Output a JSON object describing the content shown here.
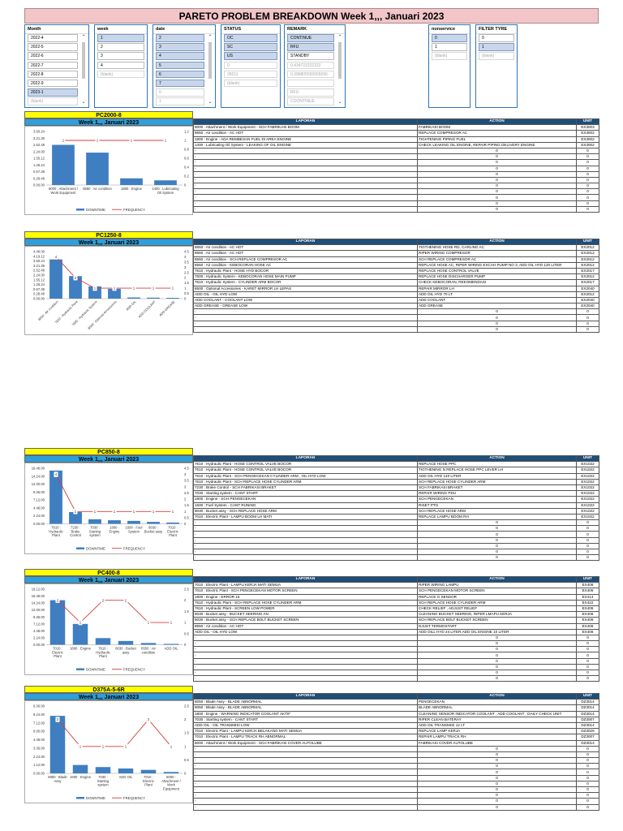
{
  "title": "PARETO PROBLEM BREAKDOWN Week 1,,, Januari 2023",
  "slicers": [
    {
      "header": "Month",
      "items": [
        {
          "label": "2022-4",
          "state": "normal"
        },
        {
          "label": "2022-5",
          "state": "normal"
        },
        {
          "label": "2022-6",
          "state": "normal"
        },
        {
          "label": "2022-7",
          "state": "normal"
        },
        {
          "label": "2022-8",
          "state": "normal"
        },
        {
          "label": "2022-9",
          "state": "normal"
        },
        {
          "label": "2023-1",
          "state": "sel"
        },
        {
          "label": "(blank)",
          "state": "dim"
        }
      ]
    },
    {
      "header": "week",
      "items": [
        {
          "label": "1",
          "state": "sel"
        },
        {
          "label": "2",
          "state": "normal"
        },
        {
          "label": "3",
          "state": "normal"
        },
        {
          "label": "4",
          "state": "normal"
        },
        {
          "label": "(blank)",
          "state": "dim"
        }
      ]
    },
    {
      "header": "date",
      "items": [
        {
          "label": "2",
          "state": "sel"
        },
        {
          "label": "3",
          "state": "sel"
        },
        {
          "label": "4",
          "state": "sel"
        },
        {
          "label": "5",
          "state": "sel"
        },
        {
          "label": "6",
          "state": "sel"
        },
        {
          "label": "7",
          "state": "sel"
        },
        {
          "label": "0",
          "state": "dim"
        },
        {
          "label": "1",
          "state": "dim"
        }
      ]
    },
    {
      "header": "STATUS",
      "items": [
        {
          "label": "OC",
          "state": "sel"
        },
        {
          "label": "SC",
          "state": "sel"
        },
        {
          "label": "US",
          "state": "sel"
        },
        {
          "label": "0",
          "state": "dim"
        },
        {
          "label": "28211",
          "state": "dim"
        },
        {
          "label": "(blank)",
          "state": "dim"
        }
      ]
    },
    {
      "header": "REMARK",
      "items": [
        {
          "label": "CONTINUE",
          "state": "sel"
        },
        {
          "label": "RFU",
          "state": "sel"
        },
        {
          "label": "STANDBY",
          "state": "normal"
        },
        {
          "label": "0.434722222222",
          "state": "dim"
        },
        {
          "label": "0.396805555555556",
          "state": "dim"
        },
        {
          "label": "",
          "state": "dim"
        },
        {
          "label": "RFU",
          "state": "dim"
        },
        {
          "label": "COONTINUE",
          "state": "dim"
        }
      ]
    },
    {
      "header": "nonservice",
      "items": [
        {
          "label": "0",
          "state": "sel"
        },
        {
          "label": "1",
          "state": "normal"
        },
        {
          "label": "(blank)",
          "state": "dim"
        }
      ]
    },
    {
      "header": "FILTER TYRE",
      "items": [
        {
          "label": "0",
          "state": "normal"
        },
        {
          "label": "1",
          "state": "sel"
        },
        {
          "label": "(blank)",
          "state": "dim"
        }
      ]
    }
  ],
  "table_headers": {
    "laporan": "LAPORAN",
    "action": "ACTION",
    "unit": "UNIT"
  },
  "blocks": [
    {
      "model": "PC2000-8",
      "week": "Week 1,,, Januari 2023",
      "chart_data": {
        "type": "bar",
        "categories": [
          "8000 : Attachment / Work Equipment",
          "8550 : Air condition",
          "1800 : Engine",
          "1400 : Lubricating Oil System"
        ],
        "series": [
          {
            "name": "DOWNTIME",
            "values": [
              3.0,
              2.42,
              0.5,
              0.35
            ]
          },
          {
            "name": "FREQUENCY",
            "values": [
              1,
              1,
              1,
              1
            ]
          }
        ],
        "y_ticks": [
          "0.00.00",
          "0.28.48",
          "0.57.36",
          "1.26.24",
          "1.55.12",
          "2.24.00",
          "2.52.48",
          "3.21.36",
          "3.50.24"
        ],
        "y2_ticks": [
          "0",
          "0.2",
          "0.4",
          "0.6",
          "0.8",
          "1",
          "1.2"
        ],
        "ylim": [
          0,
          4
        ],
        "y2lim": [
          0,
          1.2
        ],
        "data_labels": [
          "1",
          "1",
          "1",
          "1"
        ]
      },
      "rows": [
        [
          "8000 : Attachment / Work Equipment - SCH FABRIKASI BOOM",
          "FABRIKASI BOOM",
          "EX3003"
        ],
        [
          "8550 : Air condition - AC HOT",
          "REPLACE COMPRESOR AC",
          "EX3002"
        ],
        [
          "1800 : Engine - ADA REMBESAN FUEL DI AREA ENGINE",
          "TIGHTENING PIPING FUEL",
          "EX3002"
        ],
        [
          "1400 : Lubricating Oil System - LEAKING OF OIL ENGINE",
          "CHECK LEAKING OIL ENGINE, REPAIR PIPING DELIVERY ENGINE",
          "EX3002"
        ],
        [
          "-",
          "0",
          "0"
        ],
        [
          "-",
          "0",
          "0"
        ],
        [
          "-",
          "0",
          "0"
        ],
        [
          "-",
          "0",
          "0"
        ],
        [
          "-",
          "0",
          "0"
        ],
        [
          "-",
          "0",
          "0"
        ],
        [
          "-",
          "0",
          "0"
        ],
        [
          "-",
          "0",
          "0"
        ],
        [
          "-",
          "0",
          "0"
        ],
        [
          "-",
          "0",
          "0"
        ],
        [
          "-",
          "0",
          "0"
        ]
      ]
    },
    {
      "model": "PC1250-8",
      "week": "Week 1,,, Januari 2023",
      "chart_data": {
        "type": "bar",
        "categories": [
          "8550 : Air condition",
          "7610 : Hydraulic Plant",
          "7600 : Hydraulic System",
          "8500 : Optional Accessories",
          "ADD OIL",
          "ADD COOLANT",
          "ADD GREASE"
        ],
        "series": [
          {
            "name": "DOWNTIME",
            "values": [
              4.0,
              2.3,
              1.25,
              1.0,
              0.12,
              0.1,
              0.08
            ]
          },
          {
            "name": "FREQUENCY",
            "values": [
              4,
              2,
              1,
              1,
              1,
              1,
              1
            ]
          }
        ],
        "y_ticks": [
          "0.00.00",
          "0.28.48",
          "0.57.36",
          "1.26.24",
          "1.55.12",
          "2.24.00",
          "2.52.48",
          "3.21.36",
          "3.50.24",
          "4.19.12",
          "4.48.00"
        ],
        "y2_ticks": [
          "0",
          "0.5",
          "1",
          "1.5",
          "2",
          "2.5",
          "3",
          "3.5",
          "4",
          "4.5"
        ],
        "ylim": [
          0,
          4.8
        ],
        "y2lim": [
          0,
          4.5
        ],
        "data_labels": [
          "4",
          "2",
          "1",
          "1",
          "1",
          "1",
          "1"
        ]
      },
      "rows": [
        [
          "8550 : Air condition - AC HOT",
          "TIGTHENING HOSE RD, CARLING AC",
          "EX2012"
        ],
        [
          "8550 : Air condition - AC HOT",
          "RIPER WIRING COMPRESOR",
          "EX2012"
        ],
        [
          "8550 : Air condition - SCH.REPLACE COMPRESOR AC",
          "SCH REPLACE COMPRESOR AC",
          "EX2012"
        ],
        [
          "8550 : Air condition - KEBOCORAN HOSE AC",
          "REPLACE HOSE AC, RIPER WIRING EXCAH PUMP NO 3, ADD OIL HYD 120 LITER",
          "EX2012"
        ],
        [
          "7610 : Hydraulic Plant - HOSE HYD BOCOR",
          "REPLACE HOSE CONTROL VALVE",
          "EX2017"
        ],
        [
          "7600 : Hydraulic System - KEBOCORAN HOSE MAIN PUMP",
          "REPLACE HOSE DISCHARGER PUMP",
          "EX2012"
        ],
        [
          "7610 : Hydraulic System - CYLINDER ARM BOCOR",
          "CHECK KEBOCORAN, REKOMENDASI",
          "EX2017"
        ],
        [
          "8500 : Optional Accessories - KARET MIRROR LH LEPAS",
          "REPAIR MIRROR LH",
          "EX2040"
        ],
        [
          "ADD OIL - OIL HYD LOW",
          "ADD OIL HYD 70 LT",
          "EX2012"
        ],
        [
          "ADD COOLANT - COOLANT LOW",
          "ADD COOLANT",
          "EX2040"
        ],
        [
          "ADD GREASE - GREASE LOW",
          "ADD GREASE",
          "EX2040"
        ],
        [
          "-",
          "0",
          "0"
        ],
        [
          "-",
          "0",
          "0"
        ],
        [
          "-",
          "0",
          "0"
        ],
        [
          "-",
          "0",
          "0"
        ]
      ]
    },
    {
      "model": "PC850-8",
      "week": "Week 1,,, Januari 2023",
      "chart_data": {
        "type": "bar",
        "categories": [
          "7610 : Hydraulic Plant",
          "7230 : Brake Control",
          "7030 : Starting system",
          "1800 : Engine",
          "1500 : Fuel System",
          "8030 : Bucket assy",
          "7010 : Electric Plant"
        ],
        "series": [
          {
            "name": "DOWNTIME",
            "values": [
              16.3,
              3.6,
              1.4,
              1.1,
              0.9,
              0.6,
              0.4
            ]
          },
          {
            "name": "FREQUENCY",
            "values": [
              4,
              1,
              1,
              1,
              1,
              1,
              1
            ]
          }
        ],
        "y_ticks": [
          "0.00.00",
          "2.24.00",
          "4.48.00",
          "7.12.00",
          "9.36.00",
          "12.00.00",
          "14.24.00",
          "16.48.00"
        ],
        "y2_ticks": [
          "0",
          "0.5",
          "1",
          "1.5",
          "2",
          "2.5",
          "3",
          "3.5",
          "4",
          "4.5"
        ],
        "ylim": [
          0,
          17
        ],
        "y2lim": [
          0,
          4.5
        ],
        "data_labels": [
          "4",
          "1",
          "1",
          "1",
          "1",
          "1",
          "1"
        ]
      },
      "rows": [
        [
          "7610 : Hydraulic Plant - HOSE CONTROL VALVE BOCOR",
          "REPLACE HOSE PPC",
          "EX1022"
        ],
        [
          "7610 : Hydraulic Plant - HOSE CONTROL VALVE BOCOR",
          "TIGTHENING N REPLACE HOSE PPC LEVER LH",
          "EX1022"
        ],
        [
          "7610 : Hydraulic Plant - SCH PENGECEKAN CYLINDER ARM , OIL HYD LOW",
          "ADD OIL HYD 140 LITER",
          "EX1022"
        ],
        [
          "7610 : Hydraulic Plant - SCH REPLACE HOSE CYLINDER ARM",
          "SCH REPLACE HOSE CYLINDER ARM",
          "EX1022"
        ],
        [
          "7230 : Brake Control - SCH FABRIKASI BRAKET",
          "SCH FABRIKASI BRAKET",
          "EX1022"
        ],
        [
          "7030 : Starting system - CANT START",
          "REPAIR WIRING PDU",
          "EX1022"
        ],
        [
          "1800 : Engine - SCH PENGECEKAN",
          "SCH PENGECEKAN",
          "EX1022"
        ],
        [
          "1500 : Fuel System - CANT RUNING",
          "RISET PTO",
          "EX1022"
        ],
        [
          "8030 : Bucket assy - SCH REPLACE HOSE ARM",
          "SCH REPLACE HOSE ARM",
          "EX1022"
        ],
        [
          "7010 : Electric Plant - LAMPU BOOM LH MATI",
          "REPLACE LAMPU BOOM RH",
          "EX1022"
        ],
        [
          "-",
          "0",
          "0"
        ],
        [
          "-",
          "0",
          "0"
        ],
        [
          "-",
          "0",
          "0"
        ],
        [
          "-",
          "0",
          "0"
        ],
        [
          "-",
          "0",
          "0"
        ],
        [
          "-",
          "0",
          "0"
        ],
        [
          "-",
          "0",
          "0"
        ]
      ]
    },
    {
      "model": "PC400-8",
      "week": "Week 1,,, Januari 2023",
      "chart_data": {
        "type": "bar",
        "categories": [
          "7010 : Electric Plant",
          "1800 : Engine",
          "7610 : Hydraulic Plant",
          "8030 : Bucket assy",
          "8550 : Air condition",
          "ADD OIL"
        ],
        "series": [
          {
            "name": "DOWNTIME",
            "values": [
              15.4,
              7.2,
              2.3,
              1.3,
              0.6,
              0.3
            ]
          },
          {
            "name": "FREQUENCY",
            "values": [
              2,
              1,
              2,
              2,
              1,
              1
            ]
          }
        ],
        "y_ticks": [
          "0.00.00",
          "2.24.00",
          "4.48.00",
          "7.12.00",
          "9.36.00",
          "12.00.00",
          "14.24.00",
          "16.48.00",
          "19.12.00"
        ],
        "y2_ticks": [
          "0",
          "0.5",
          "1",
          "1.5",
          "2",
          "2.5"
        ],
        "ylim": [
          0,
          19.2
        ],
        "y2lim": [
          0,
          2.5
        ],
        "data_labels": [
          "2",
          "1",
          "2",
          "2",
          "1",
          "1"
        ]
      },
      "rows": [
        [
          "7010 : Electric Plant - LAMPU KERJA MATI SEMUA",
          "RIPER WIRING LAMPU",
          "EX408"
        ],
        [
          "7010 : Electric Plant - SCH PENGECEKAN MOTOR SCREEN",
          "SCH PENGECEKAN MOTOR SCREEN",
          "EX408"
        ],
        [
          "1800 : Engine - ERROR 15",
          "REPLACE G SENSOR",
          "EX414"
        ],
        [
          "7610 : Hydraulic Plant - SCH REPLACE HOSE CYLINDER ARM",
          "SCH REPLACE HOSE CYLINDER ARM",
          "EX422"
        ],
        [
          "7610 : Hydraulic Plant - SCREEN LOW POWER",
          "CHECK RELIEF , ADJUST RELIEF",
          "EX408"
        ],
        [
          "8030 : Bucket assy - BUCKET SEERING AN",
          "CLEANING BUCKET SEERING, RIPER LMAPU KERJA",
          "EX408"
        ],
        [
          "8030 : Bucket assy - SCH.REPLACE BOLT BUCKET SCREEN",
          "SCH REPLACE BOLT BUCKET SCREEN",
          "EX408"
        ],
        [
          "8550 : Air condition - AC HOT",
          "DJUST TERMOSTART",
          "EX408"
        ],
        [
          "ADD OIL - OIL HYD LOW",
          "ADD OILL HYD 24 LITER,ADD OIL ENGINE 10 LITER",
          "EX408"
        ],
        [
          "-",
          "0",
          "0"
        ],
        [
          "-",
          "0",
          "0"
        ],
        [
          "-",
          "0",
          "0"
        ],
        [
          "-",
          "0",
          "0"
        ],
        [
          "-",
          "0",
          "0"
        ],
        [
          "-",
          "0",
          "0"
        ],
        [
          "-",
          "0",
          "0"
        ],
        [
          "-",
          "0",
          "0"
        ]
      ]
    },
    {
      "model": "D375A-5-6R",
      "week": "Week 1,,, Januari 2023",
      "chart_data": {
        "type": "bar",
        "categories": [
          "8050 : Blade Assy",
          "1800 : Engine",
          "7030 : Starting system",
          "ADD OIL",
          "7010 : Electric Plant",
          "8000 : Attachment / Work Equipment"
        ],
        "series": [
          {
            "name": "DOWNTIME",
            "values": [
              8.2,
              1.2,
              0.9,
              0.7,
              0.5,
              0.2
            ]
          },
          {
            "name": "FREQUENCY",
            "values": [
              2,
              1,
              1,
              1,
              2,
              1
            ]
          }
        ],
        "y_ticks": [
          "0.00.00",
          "1.12.00",
          "2.24.00",
          "3.36.00",
          "4.48.00",
          "6.00.00",
          "7.12.00",
          "8.24.00",
          "9.36.00"
        ],
        "y2_ticks": [
          "0",
          "0.5",
          "1",
          "1.5",
          "2",
          "2.5"
        ],
        "ylim": [
          0,
          9.6
        ],
        "y2lim": [
          0,
          2.5
        ],
        "data_labels": [
          "2",
          "1",
          "1",
          "1",
          "2",
          "1"
        ]
      },
      "rows": [
        [
          "8050 : Blade Assy - BLADE ABNORMAL",
          "PENGECEKAN",
          "DZ3014"
        ],
        [
          "8050 : Blade Assy - BLADE ABNORMAL",
          "BLADE ABNORMAL",
          "DZ3014"
        ],
        [
          "1800 : Engine - WARNING INDICATOR COOLANT AKTIF",
          "CLEANING SENSOR INDICATOR COOLANT , ADD COOLANT , DAILY CHECK UNIT",
          "DZ3014"
        ],
        [
          "7030 : Starting system - CANT START",
          "RIPER CLEAN BATERAY",
          "DZ3007"
        ],
        [
          "ADD OIL - OIL TRANSMISI LOW",
          "ADD OIL TRANSMISI 12 LT",
          "DZ3014"
        ],
        [
          "7010 : Electric Plant - LAMPU KERJA BELAKANG MATI SEMUA",
          "REPLACE LAMP KERJA",
          "DZ3026"
        ],
        [
          "7010 : Electric Plant - LAMPU TRACK RH ABNORMAL",
          "REPAIR LAMPU TRACK RH",
          "DZ3007"
        ],
        [
          "8000 : Attachment / Work Equipment - SCH FABRIKASI COVER AUTOLUBE",
          "FABRIKASI COVER AUTOLUBE",
          "DZ3014"
        ],
        [
          "-",
          "0",
          "0"
        ],
        [
          "-",
          "0",
          "0"
        ],
        [
          "-",
          "0",
          "0"
        ],
        [
          "-",
          "0",
          "0"
        ],
        [
          "-",
          "0",
          "0"
        ],
        [
          "-",
          "0",
          "0"
        ],
        [
          "-",
          "0",
          "0"
        ],
        [
          "-",
          "0",
          "0"
        ],
        [
          "-",
          "0",
          "0"
        ],
        [
          "-",
          "0",
          "0"
        ],
        [
          "-",
          "0",
          "0"
        ]
      ]
    }
  ]
}
